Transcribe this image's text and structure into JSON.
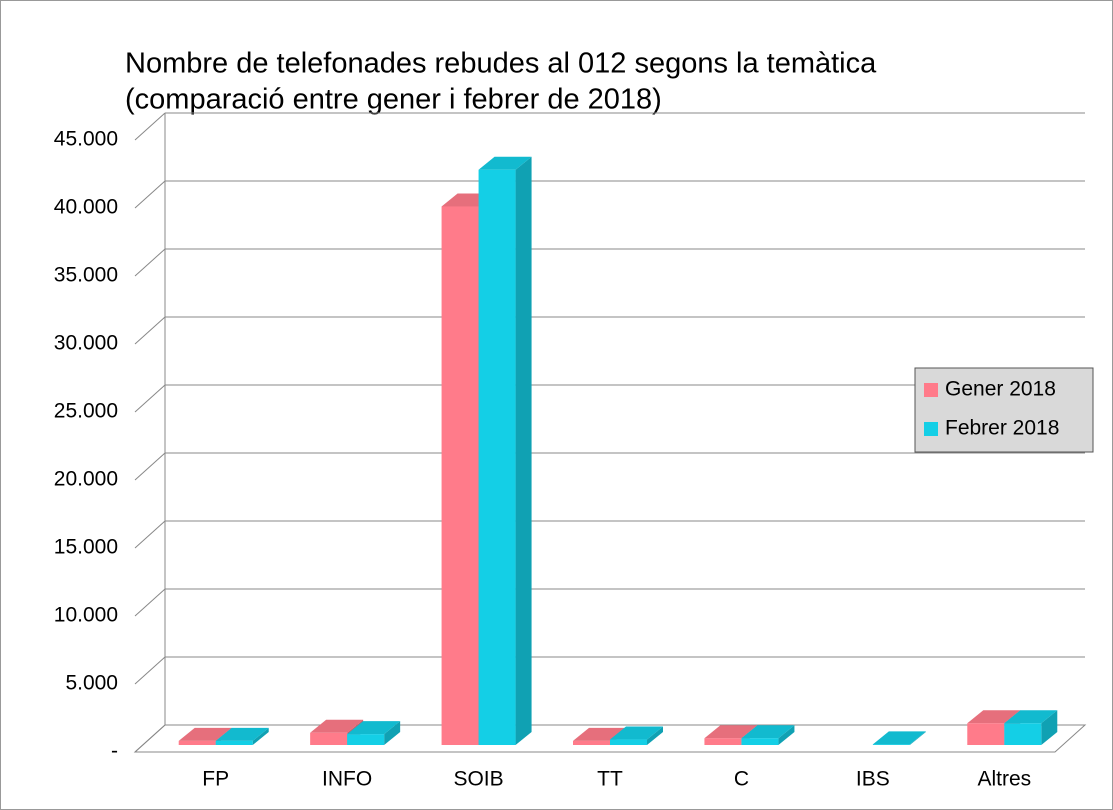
{
  "chart_data": {
    "type": "bar3d",
    "title": [
      "Nombre de telefonades rebudes al 012 segons la temàtica",
      "(comparació entre gener i febrer de 2018)"
    ],
    "categories": [
      "FP",
      "INFO",
      "SOIB",
      "TT",
      "C",
      "IBS",
      "Altres"
    ],
    "series": [
      {
        "name": "Gener 2018",
        "color": "#ff7b8a",
        "values": [
          300,
          900,
          39600,
          300,
          500,
          0,
          1600
        ]
      },
      {
        "name": "Febrer 2018",
        "color": "#14cfe6",
        "values": [
          300,
          800,
          42300,
          400,
          500,
          50,
          1600
        ]
      }
    ],
    "ylim": [
      0,
      45000
    ],
    "yticks": [
      {
        "value": 0,
        "label": "-"
      },
      {
        "value": 5000,
        "label": "5.000"
      },
      {
        "value": 10000,
        "label": "10.000"
      },
      {
        "value": 15000,
        "label": "15.000"
      },
      {
        "value": 20000,
        "label": "20.000"
      },
      {
        "value": 25000,
        "label": "25.000"
      },
      {
        "value": 30000,
        "label": "30.000"
      },
      {
        "value": 35000,
        "label": "35.000"
      },
      {
        "value": 40000,
        "label": "40.000"
      },
      {
        "value": 45000,
        "label": "45.000"
      }
    ],
    "grid": true,
    "legend": "right"
  }
}
